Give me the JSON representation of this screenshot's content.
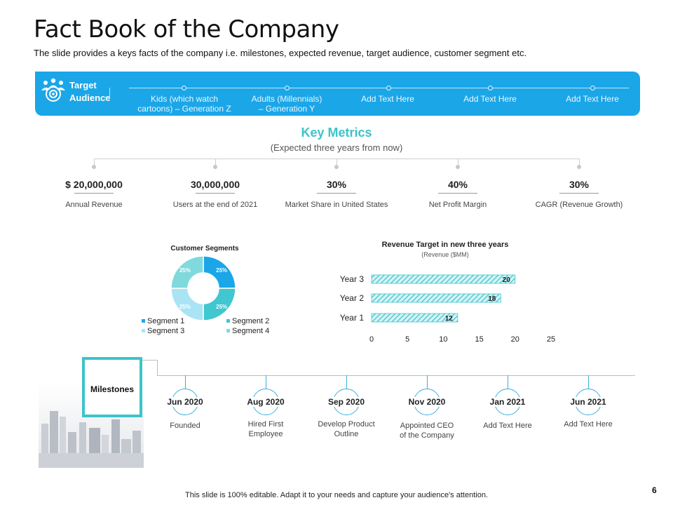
{
  "slide": {
    "title": "Fact Book of the Company",
    "subtitle": "The slide provides a keys facts of the company i.e. milestones, expected revenue, target audience, customer segment etc.",
    "page_number": "6",
    "footer": "This slide is 100% editable. Adapt it to your needs and capture your audience's attention."
  },
  "target_audience": {
    "label_line1": "Target",
    "label_line2": "Audience",
    "items": [
      {
        "line1": "Kids (which watch",
        "line2": "cartoons) – Generation Z"
      },
      {
        "line1": "Adults (Millennials)",
        "line2": "– Generation Y"
      },
      {
        "line1": "Add Text Here",
        "line2": ""
      },
      {
        "line1": "Add Text Here",
        "line2": ""
      },
      {
        "line1": "Add Text Here",
        "line2": ""
      }
    ]
  },
  "key_metrics": {
    "title": "Key Metrics",
    "subtitle": "(Expected three years from now)",
    "items": [
      {
        "value": "$ 20,000,000",
        "label": "Annual Revenue"
      },
      {
        "value": "30,000,000",
        "label": "Users at the end of 2021"
      },
      {
        "value": "30%",
        "label": "Market Share in United States"
      },
      {
        "value": "40%",
        "label": "Net Profit Margin"
      },
      {
        "value": "30%",
        "label": "CAGR (Revenue Growth)"
      }
    ]
  },
  "chart_data": [
    {
      "type": "pie",
      "title": "Customer Segments",
      "donut": true,
      "categories": [
        "Segment 1",
        "Segment 2",
        "Segment 3",
        "Segment 4"
      ],
      "values": [
        25,
        25,
        25,
        25
      ],
      "data_labels": [
        "25%",
        "25%",
        "25%",
        "25%"
      ],
      "colors": [
        "#1ba6e8",
        "#40c7cf",
        "#a9e4f5",
        "#7fd9dd"
      ],
      "legend_position": "bottom"
    },
    {
      "type": "bar",
      "orientation": "horizontal",
      "title": "Revenue Target in new three years",
      "subtitle": "(Revenue ($MM)",
      "categories": [
        "Year 1",
        "Year 2",
        "Year 3"
      ],
      "values": [
        12,
        18,
        20
      ],
      "xlim": [
        0,
        25
      ],
      "xticks": [
        0,
        5,
        10,
        15,
        20,
        25
      ],
      "grid": false,
      "bar_color": "#40c7cf"
    }
  ],
  "milestones": {
    "label": "Milestones",
    "items": [
      {
        "date": "Jun 2020",
        "line1": "Founded",
        "line2": ""
      },
      {
        "date": "Aug 2020",
        "line1": "Hired First",
        "line2": "Employee"
      },
      {
        "date": "Sep 2020",
        "line1": "Develop Product",
        "line2": "Outline"
      },
      {
        "date": "Nov 2020",
        "line1": "Appointed CEO",
        "line2": "of the Company"
      },
      {
        "date": "Jan 2021",
        "line1": "Add Text Here",
        "line2": ""
      },
      {
        "date": "Jun 2021",
        "line1": "Add Text Here",
        "line2": ""
      }
    ]
  }
}
